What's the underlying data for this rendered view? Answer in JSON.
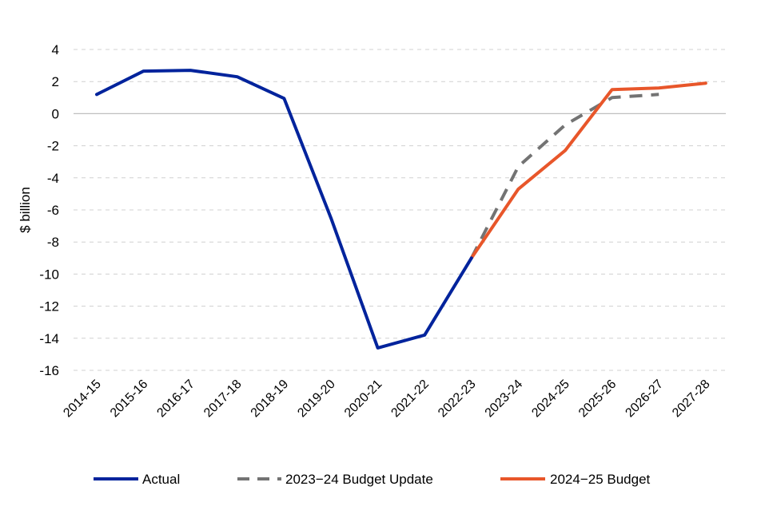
{
  "chart_data": {
    "type": "line",
    "title": "",
    "xlabel": "",
    "ylabel": "$ billion",
    "ylim": [
      -16,
      4
    ],
    "yticks": [
      4,
      2,
      0,
      -2,
      -4,
      -6,
      -8,
      -10,
      -12,
      -14,
      -16
    ],
    "grid": "horizontal dashed",
    "legend_position": "bottom",
    "categories": [
      "2014-15",
      "2015-16",
      "2016-17",
      "2017-18",
      "2018-19",
      "2019-20",
      "2020-21",
      "2021-22",
      "2022-23",
      "2023-24",
      "2024-25",
      "2025-26",
      "2026-27",
      "2027-28"
    ],
    "series": [
      {
        "name": "Actual",
        "color": "#00239c",
        "style": "solid",
        "values": [
          1.2,
          2.65,
          2.7,
          2.3,
          0.95,
          -6.5,
          -14.6,
          -13.8,
          -9.0,
          null,
          null,
          null,
          null,
          null
        ]
      },
      {
        "name": "2023−24 Budget Update",
        "color": "#737373",
        "style": "dashed",
        "values": [
          null,
          null,
          null,
          null,
          null,
          null,
          null,
          null,
          -9.0,
          -3.3,
          -0.7,
          1.0,
          1.2,
          null
        ]
      },
      {
        "name": "2024−25 Budget",
        "color": "#e8562a",
        "style": "solid",
        "values": [
          null,
          null,
          null,
          null,
          null,
          null,
          null,
          null,
          -9.0,
          -4.7,
          -2.3,
          1.5,
          1.6,
          1.9
        ]
      }
    ]
  }
}
